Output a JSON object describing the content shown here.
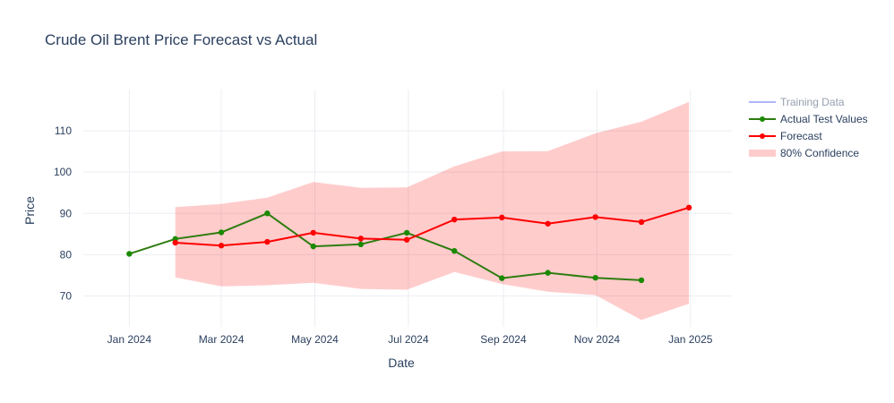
{
  "chart_data": {
    "type": "line",
    "title": "Crude Oil Brent Price Forecast vs Actual",
    "xlabel": "Date",
    "ylabel": "Price",
    "xlim": [
      "2023-12-02",
      "2025-01-28"
    ],
    "ylim": [
      62.5,
      120
    ],
    "x_ticks": [
      {
        "date": "2024-01-01",
        "label": "Jan 2024"
      },
      {
        "date": "2024-03-01",
        "label": "Mar 2024"
      },
      {
        "date": "2024-05-01",
        "label": "May 2024"
      },
      {
        "date": "2024-07-01",
        "label": "Jul 2024"
      },
      {
        "date": "2024-09-01",
        "label": "Sep 2024"
      },
      {
        "date": "2024-11-01",
        "label": "Nov 2024"
      },
      {
        "date": "2025-01-01",
        "label": "Jan 2025"
      }
    ],
    "y_ticks": [
      70,
      80,
      90,
      100,
      110
    ],
    "grid": true,
    "legend_position": "top-right",
    "series": [
      {
        "name": "Training Data",
        "color": "#636efa",
        "hidden": true,
        "x": [],
        "y": []
      },
      {
        "name": "Actual Test Values",
        "color": "#2e7d10",
        "marker_color": "#1a8a00",
        "x": [
          "2024-01-01",
          "2024-01-31",
          "2024-03-01",
          "2024-03-31",
          "2024-04-30",
          "2024-05-31",
          "2024-06-30",
          "2024-07-31",
          "2024-08-31",
          "2024-09-30",
          "2024-10-31",
          "2024-11-30"
        ],
        "y": [
          80.2,
          83.8,
          85.4,
          90.0,
          82.0,
          82.5,
          85.3,
          80.9,
          74.3,
          75.6,
          74.4,
          73.8
        ]
      },
      {
        "name": "Forecast",
        "color": "#ff0000",
        "x": [
          "2024-01-31",
          "2024-03-01",
          "2024-03-31",
          "2024-04-30",
          "2024-05-31",
          "2024-06-30",
          "2024-07-31",
          "2024-08-31",
          "2024-09-30",
          "2024-10-31",
          "2024-11-30",
          "2024-12-31"
        ],
        "y": [
          82.9,
          82.2,
          83.1,
          85.3,
          83.9,
          83.6,
          88.5,
          89.0,
          87.5,
          89.1,
          87.9,
          91.4
        ]
      }
    ],
    "confidence_band": {
      "name": "80% Confidence",
      "color": "rgba(255,0,0,0.2)",
      "x": [
        "2024-01-31",
        "2024-03-01",
        "2024-03-31",
        "2024-04-30",
        "2024-05-31",
        "2024-06-30",
        "2024-07-31",
        "2024-08-31",
        "2024-09-30",
        "2024-10-31",
        "2024-11-30",
        "2024-12-31"
      ],
      "upper": [
        91.5,
        92.3,
        93.8,
        97.6,
        96.2,
        96.3,
        101.4,
        105.0,
        105.1,
        109.4,
        112.2,
        117.0
      ],
      "lower": [
        74.5,
        72.3,
        72.6,
        73.2,
        71.7,
        71.5,
        75.8,
        72.9,
        71.0,
        70.2,
        64.2,
        68.1
      ]
    }
  }
}
